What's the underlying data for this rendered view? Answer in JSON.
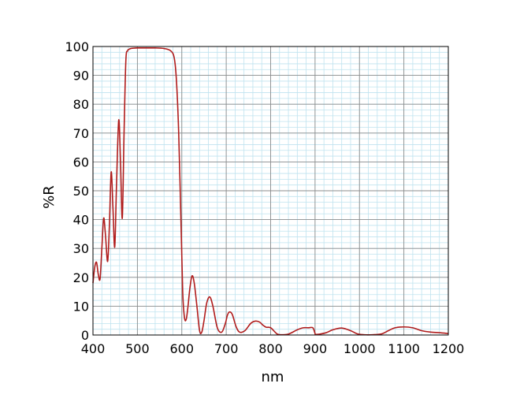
{
  "chart_data": {
    "type": "line",
    "xlabel": "nm",
    "ylabel": "%R",
    "xlim": [
      400,
      1200
    ],
    "ylim": [
      0,
      100
    ],
    "x_ticks": [
      "400",
      "500",
      "600",
      "700",
      "800",
      "900",
      "1000",
      "1100",
      "1200"
    ],
    "y_ticks": [
      "0",
      "10",
      "20",
      "30",
      "40",
      "50",
      "60",
      "70",
      "80",
      "90",
      "100"
    ],
    "grid": true,
    "minor_grid_x_step": 20,
    "minor_grid_y_step": 2,
    "colors": {
      "line": "#b01c1c",
      "major_grid": "#8c8c8c",
      "minor_grid": "#bfe3ef",
      "frame": "#000000"
    },
    "series": [
      {
        "x": [
          400,
          404,
          408,
          412,
          416,
          420,
          424,
          428,
          433,
          437,
          441,
          445,
          449,
          453,
          458,
          462,
          466,
          470,
          474,
          478,
          481,
          485,
          490,
          500,
          520,
          540,
          560,
          575,
          583,
          588,
          593,
          598,
          602,
          606,
          610,
          614,
          618,
          623,
          628,
          634,
          640,
          645,
          650,
          656,
          663,
          670,
          680,
          690,
          698,
          703,
          708,
          714,
          722,
          730,
          742,
          755,
          765,
          775,
          782,
          790,
          800,
          815,
          825,
          840,
          860,
          873,
          885,
          895,
          900,
          901,
          910,
          925,
          940,
          960,
          980,
          995,
          1010,
          1030,
          1050,
          1065,
          1080,
          1100,
          1120,
          1140,
          1160,
          1180,
          1200
        ],
        "y": [
          18,
          23.5,
          25.2,
          21,
          19.5,
          30,
          40.5,
          35,
          25.5,
          38,
          56.5,
          44,
          30.5,
          52,
          74.5,
          60,
          40.5,
          70,
          95,
          98.5,
          99,
          99.3,
          99.4,
          99.5,
          99.5,
          99.5,
          99.3,
          98.5,
          96,
          88,
          70,
          40,
          15,
          6,
          5.5,
          10,
          16,
          20.5,
          18,
          10,
          1.5,
          1,
          5,
          11,
          13.2,
          10,
          2.5,
          1,
          4,
          7,
          8,
          7,
          3,
          1,
          1.5,
          4,
          4.8,
          4.5,
          3.5,
          2.7,
          2.5,
          0.3,
          0.1,
          0.3,
          1.8,
          2.5,
          2.5,
          2.5,
          0.5,
          0.2,
          0.3,
          0.8,
          1.8,
          2.4,
          1.5,
          0.4,
          0.1,
          0.1,
          0.4,
          1.5,
          2.5,
          2.8,
          2.5,
          1.5,
          1,
          0.8,
          0.5
        ]
      }
    ]
  }
}
